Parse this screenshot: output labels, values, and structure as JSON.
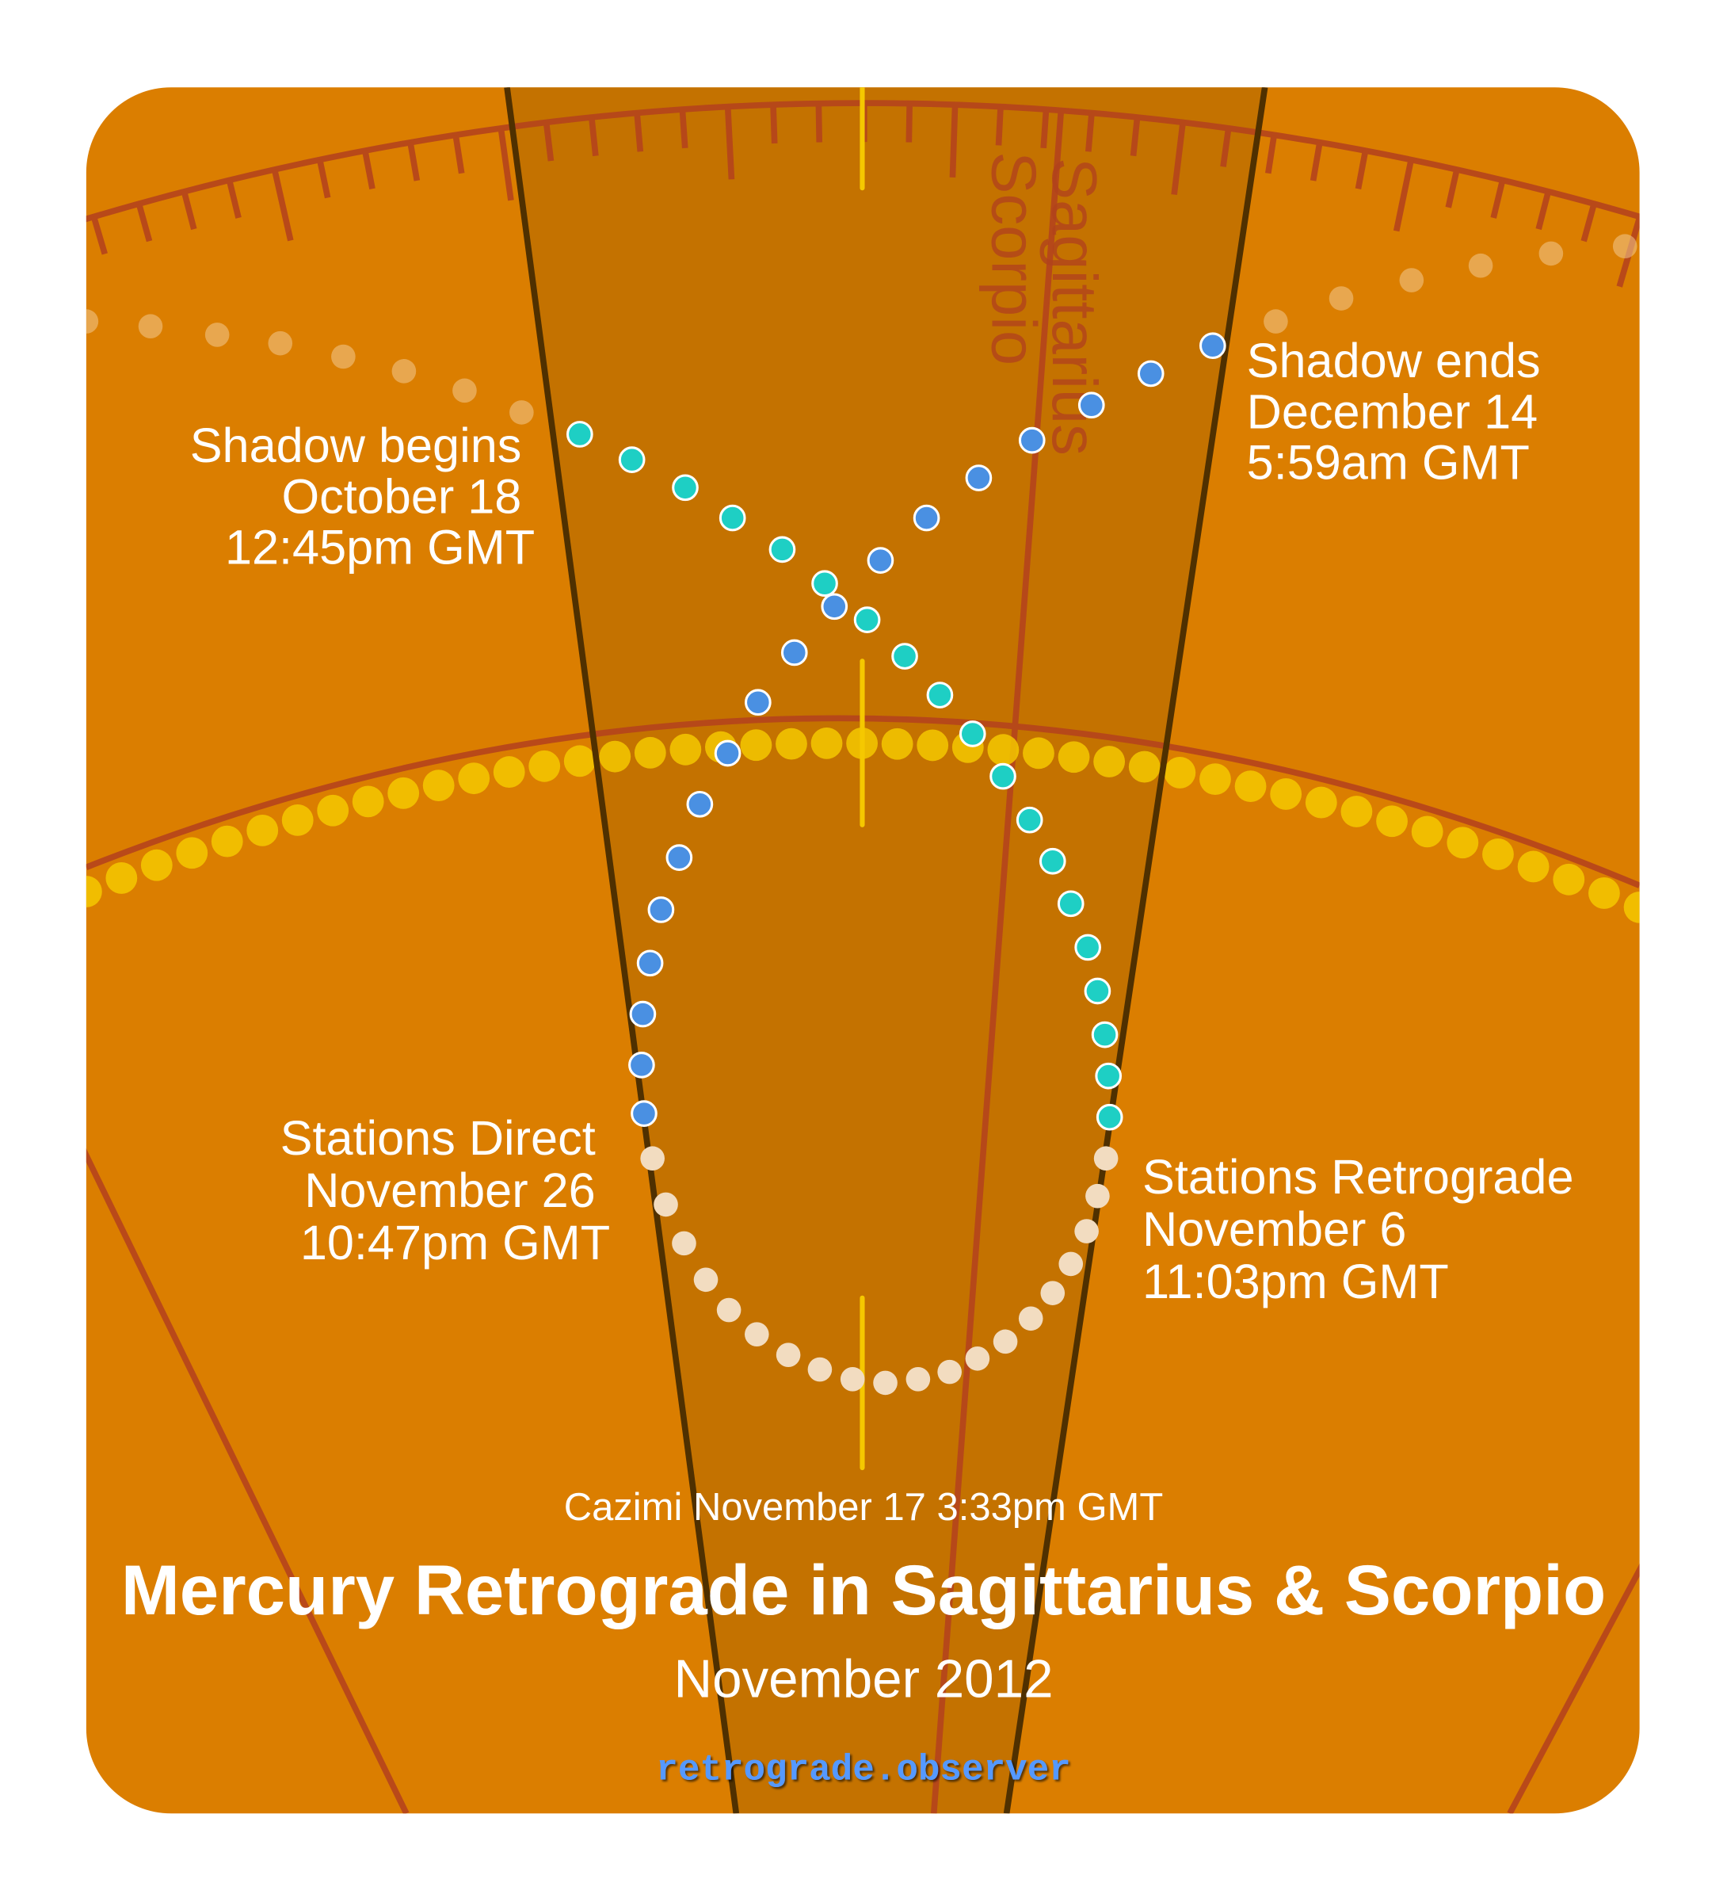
{
  "colors": {
    "background": "#DB7E00",
    "shadow_wedge": "#C47200",
    "zodiac_lines": "#B5441C",
    "sun": "#F5C800",
    "mercury_pre_retrograde": "#1ECFC4",
    "mercury_post_retrograde": "#4A90E2",
    "mercury_retrograde": "#F2DCC0",
    "site": "#5599FF"
  },
  "signs": [
    "Sagittarius",
    "Scorpio"
  ],
  "labels": {
    "shadow_begins": [
      "Shadow begins",
      "October 18",
      "12:45pm GMT"
    ],
    "shadow_ends": [
      "Shadow ends",
      "December 14",
      "5:59am GMT"
    ],
    "stations_direct": [
      "Stations Direct",
      "November 26",
      "10:47pm GMT"
    ],
    "stations_retrograde": [
      "Stations Retrograde",
      "November 6",
      "11:03pm GMT"
    ],
    "cazimi": "Cazimi November 17 3:33pm GMT"
  },
  "title": "Mercury Retrograde in Sagittarius & Scorpio",
  "subtitle": "November 2012",
  "site": "retrograde.observer"
}
